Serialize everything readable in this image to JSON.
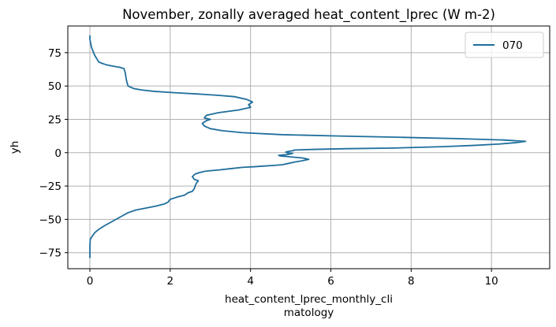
{
  "chart_data": {
    "type": "line",
    "title": "November, zonally averaged heat_content_lprec (W m-2)",
    "xlabel_lines": [
      "heat_content_lprec_monthly_cli",
      "matology"
    ],
    "ylabel": "yh",
    "xlim": [
      -0.55,
      11.45
    ],
    "ylim": [
      -87,
      95
    ],
    "xticks": [
      0,
      2,
      4,
      6,
      8,
      10
    ],
    "yticks": [
      -75,
      -50,
      -25,
      0,
      25,
      50,
      75
    ],
    "xtick_labels": [
      "0",
      "2",
      "4",
      "6",
      "8",
      "10"
    ],
    "ytick_labels": [
      "−75",
      "−50",
      "−25",
      "0",
      "25",
      "50",
      "75"
    ],
    "grid": true,
    "legend_position": "upper right",
    "series": [
      {
        "name": "070",
        "color": "#1f6e9c",
        "x": [
          0.0,
          0.0,
          0.0,
          0.01,
          0.05,
          0.12,
          0.22,
          0.35,
          0.5,
          0.65,
          0.8,
          0.95,
          1.15,
          1.4,
          1.65,
          1.85,
          1.95,
          1.97,
          2.0,
          2.1,
          2.2,
          2.35,
          2.45,
          2.55,
          2.6,
          2.62,
          2.65,
          2.7,
          2.6,
          2.55,
          2.62,
          2.72,
          2.85,
          3.0,
          3.2,
          3.5,
          3.8,
          4.1,
          4.35,
          4.6,
          4.8,
          4.95,
          5.1,
          5.3,
          5.45,
          5.3,
          4.95,
          4.75,
          4.7,
          4.9,
          5.05,
          4.9,
          4.88,
          4.95,
          5.05,
          5.1,
          5.6,
          6.4,
          7.6,
          8.8,
          9.6,
          10.2,
          10.6,
          10.85,
          10.3,
          9.2,
          7.8,
          6.2,
          4.8,
          3.8,
          3.3,
          3.0,
          2.85,
          2.8,
          2.9,
          3.0,
          2.85,
          2.9,
          3.2,
          3.7,
          4.0,
          3.95,
          4.05,
          3.9,
          3.6,
          3.2,
          2.7,
          2.1,
          1.6,
          1.3,
          1.1,
          0.95,
          0.92,
          0.9,
          0.88,
          0.85,
          0.75,
          0.55,
          0.4,
          0.3,
          0.22,
          0.18,
          0.12,
          0.08,
          0.04,
          0.02,
          0.0,
          0.0
        ],
        "y": [
          -79,
          -75,
          -70,
          -65,
          -63,
          -60,
          -57.5,
          -55,
          -52.5,
          -50,
          -47.5,
          -45,
          -43,
          -41.5,
          -40,
          -38.5,
          -37,
          -36,
          -35,
          -34,
          -33,
          -32,
          -30,
          -29,
          -27,
          -25,
          -23,
          -21,
          -20,
          -18,
          -16,
          -15,
          -14,
          -13.5,
          -13,
          -12,
          -11,
          -10.5,
          -10,
          -9.5,
          -9,
          -8,
          -7,
          -6,
          -5,
          -4,
          -3,
          -2.5,
          -2,
          -1.5,
          -0.5,
          0,
          0.5,
          1,
          1.5,
          2,
          2.5,
          3,
          3.5,
          4.5,
          5.5,
          6.5,
          7.5,
          8.5,
          9.5,
          10.5,
          11.5,
          12.5,
          13.5,
          15,
          16.5,
          18,
          20,
          22,
          24,
          25,
          26,
          28,
          30,
          32,
          34,
          36,
          38,
          40,
          42,
          43,
          44,
          45,
          46,
          47,
          48,
          50,
          53,
          56,
          60,
          63,
          64,
          65,
          66,
          67,
          68,
          70,
          73,
          76,
          79,
          82,
          85,
          88
        ]
      }
    ]
  }
}
